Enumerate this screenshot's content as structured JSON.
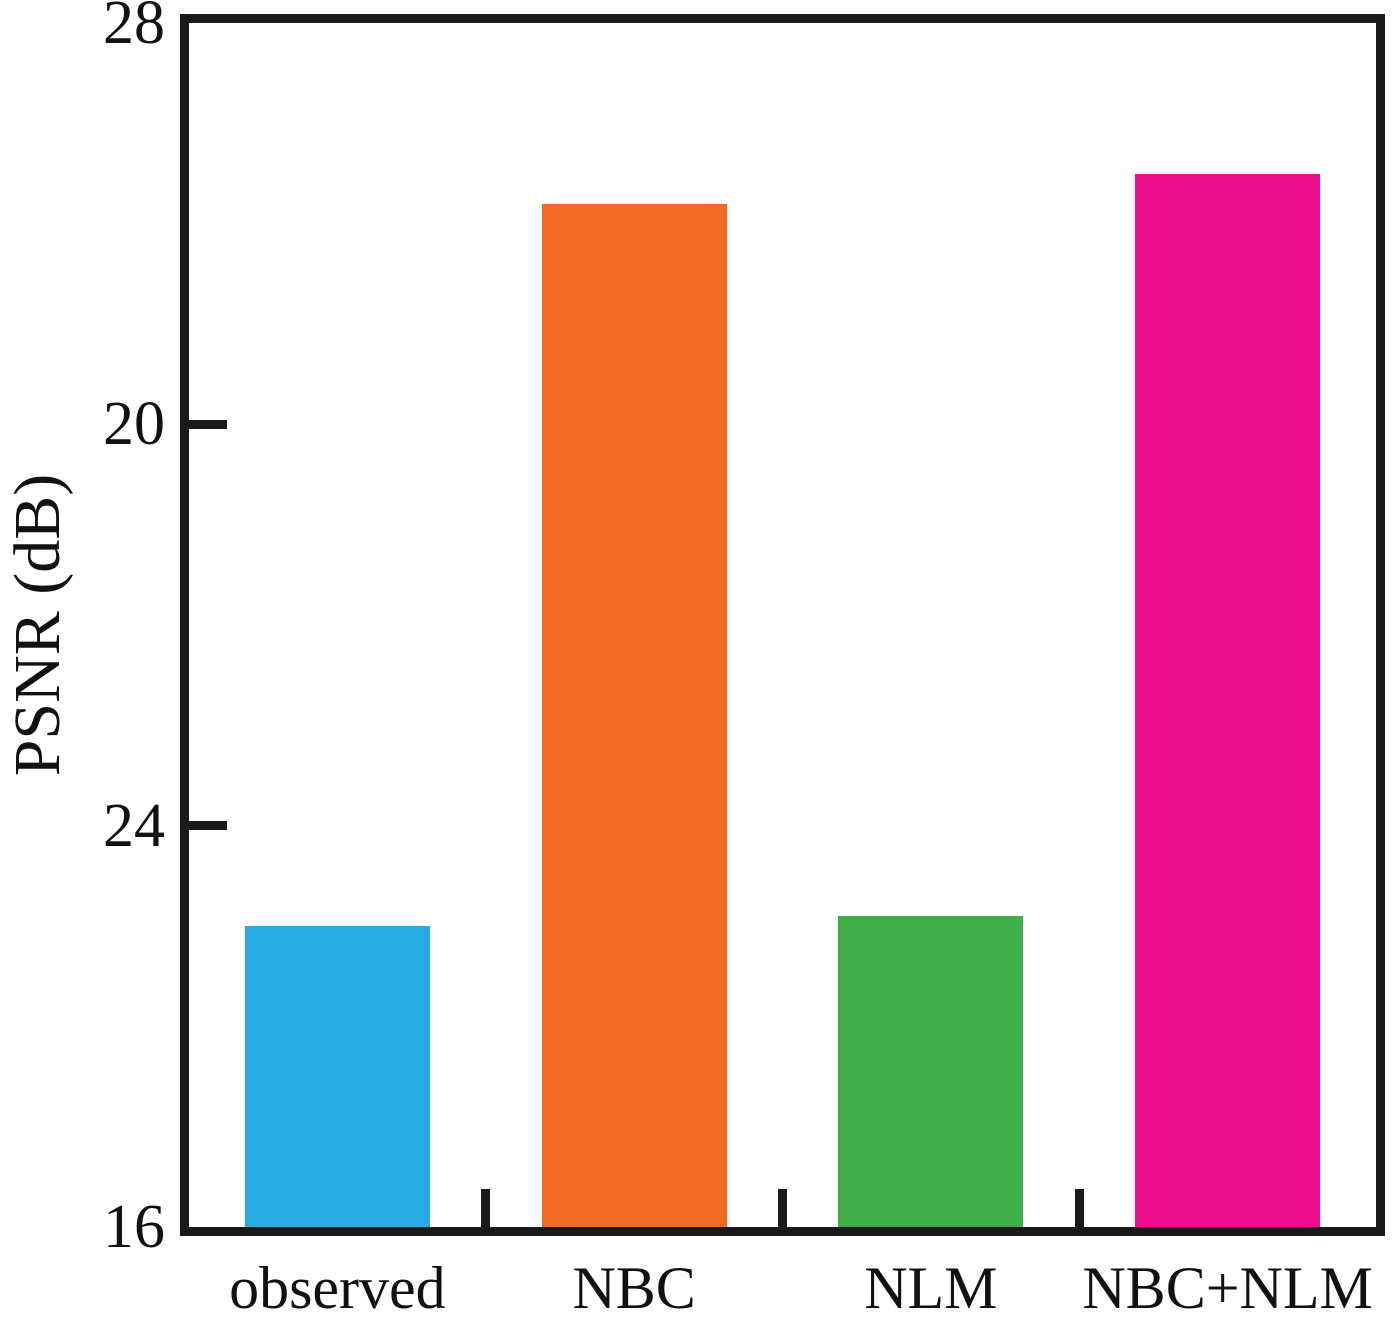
{
  "chart_data": {
    "type": "bar",
    "title": "",
    "categories": [
      "observed",
      "NBC",
      "NLM",
      "NBC+NLM"
    ],
    "values": [
      19.0,
      26.2,
      19.1,
      26.5
    ],
    "colors": [
      "#29abe2",
      "#f16a21",
      "#3faf4a",
      "#ec0e8e"
    ],
    "ylabel": "PSNR (dB)",
    "xlabel": "",
    "ylim": [
      16,
      28
    ],
    "y_tick_labels_top_to_bottom": [
      "28",
      "20",
      "24",
      "16"
    ],
    "grid": false,
    "legend": false,
    "axis_color": "#1a1a1a"
  }
}
